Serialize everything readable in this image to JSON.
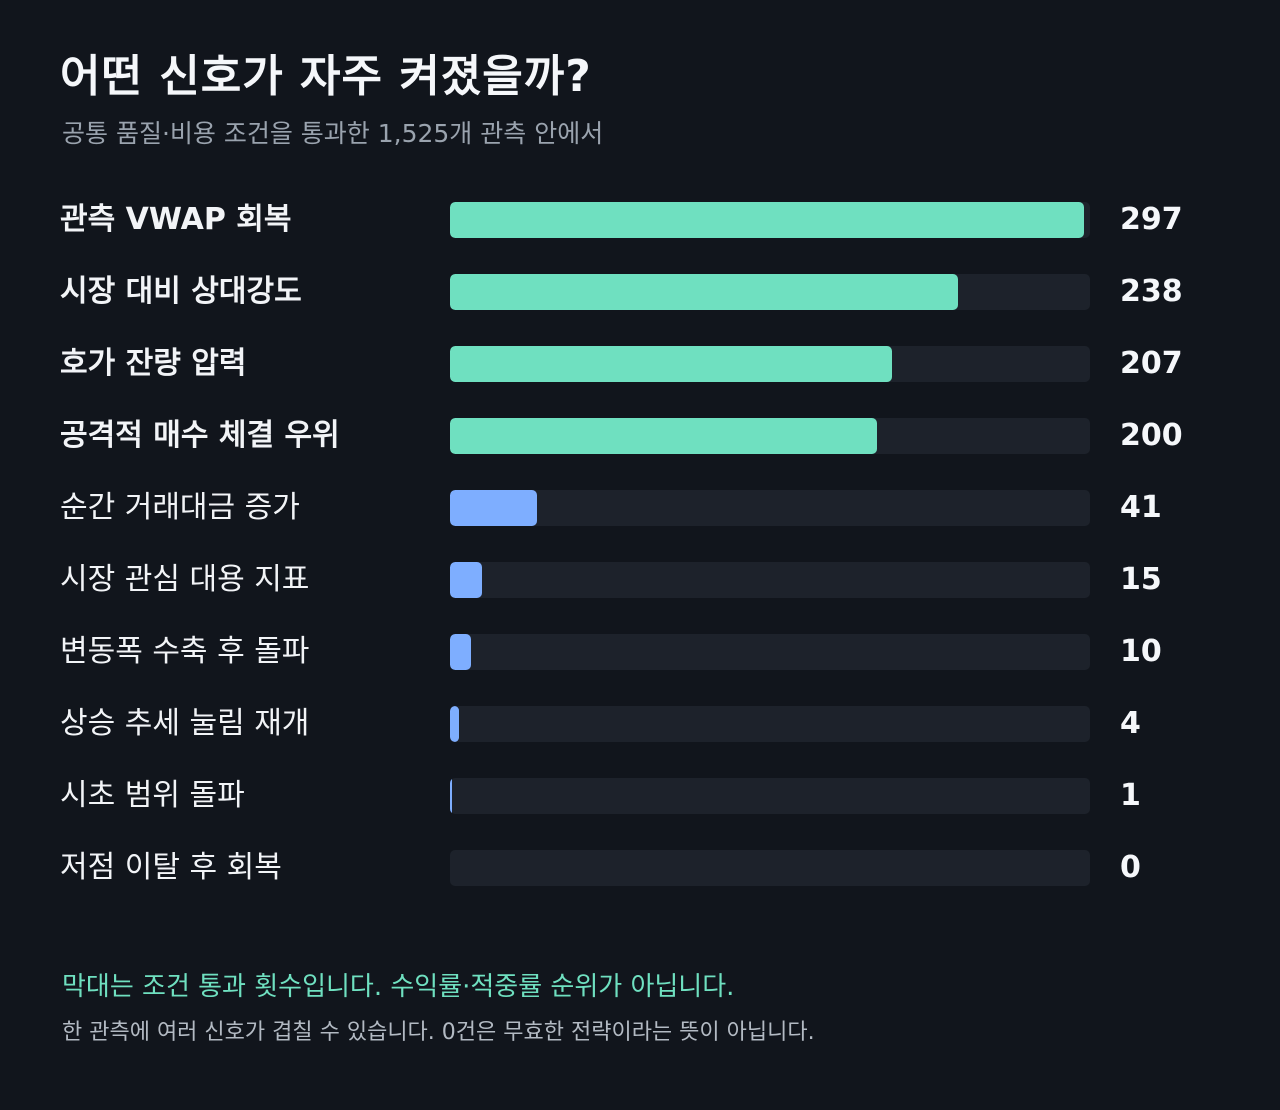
{
  "header": {
    "title": "어떤 신호가 자주 켜졌을까?",
    "subtitle": "공통 품질·비용 조건을 통과한 1,525개 관측 안에서"
  },
  "colors": {
    "highlight": "#6fe0c0",
    "normal": "#7eaeff",
    "track": "#1d222b"
  },
  "chart_data": {
    "type": "bar",
    "orientation": "horizontal",
    "title": "어떤 신호가 자주 켜졌을까?",
    "subtitle": "공통 품질·비용 조건을 통과한 1,525개 관측 안에서",
    "xlim": [
      0,
      300
    ],
    "grid": false,
    "categories": [
      "관측 VWAP 회복",
      "시장 대비 상대강도",
      "호가 잔량 압력",
      "공격적 매수 체결 우위",
      "순간 거래대금 증가",
      "시장 관심 대용 지표",
      "변동폭 수축 후 돌파",
      "상승 추세 눌림 재개",
      "시초 범위 돌파",
      "저점 이탈 후 회복"
    ],
    "values": [
      297,
      238,
      207,
      200,
      41,
      15,
      10,
      4,
      1,
      0
    ],
    "highlighted": [
      true,
      true,
      true,
      true,
      false,
      false,
      false,
      false,
      false,
      false
    ]
  },
  "footer": {
    "note": "막대는 조건 통과 횟수입니다. 수익률·적중률 순위가 아닙니다.",
    "caveat": "한 관측에 여러 신호가 겹칠 수 있습니다. 0건은 무효한 전략이라는 뜻이 아닙니다."
  }
}
